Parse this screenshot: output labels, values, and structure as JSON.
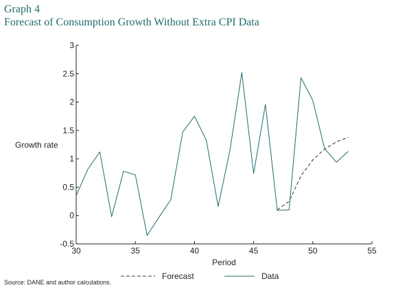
{
  "header": {
    "graph_number": "Graph 4",
    "title": "Forecast of Consumption Growth Without Extra CPI Data"
  },
  "source": "Source: DANE and author calculations.",
  "chart_data": {
    "type": "line",
    "xlabel": "Period",
    "ylabel": "Growth rate",
    "xlim": [
      30,
      55
    ],
    "ylim": [
      -0.5,
      3
    ],
    "xticks": [
      30,
      35,
      40,
      45,
      50,
      55
    ],
    "yticks": [
      -0.5,
      0,
      0.5,
      1,
      1.5,
      2,
      2.5,
      3
    ],
    "ytick_labels": [
      "-0.5",
      "0",
      "0.5",
      "1",
      "1.5",
      "2",
      "2.5",
      "3"
    ],
    "grid": false,
    "legend": "bottom",
    "series": [
      {
        "name": "Forecast",
        "style": "dashed",
        "color": "#333333",
        "x": [
          47,
          48,
          49,
          50,
          51,
          52,
          53
        ],
        "y": [
          0.1,
          0.25,
          0.7,
          0.98,
          1.17,
          1.3,
          1.38
        ]
      },
      {
        "name": "Data",
        "style": "solid",
        "color": "#1f6b6b",
        "x": [
          30,
          31,
          32,
          33,
          34,
          35,
          36,
          37,
          38,
          39,
          40,
          41,
          42,
          43,
          44,
          45,
          46,
          47,
          48,
          49,
          50,
          51,
          52,
          53
        ],
        "y": [
          0.35,
          0.82,
          1.12,
          -0.02,
          0.78,
          0.72,
          -0.35,
          -0.03,
          0.28,
          1.47,
          1.75,
          1.33,
          0.16,
          1.15,
          2.52,
          0.74,
          1.96,
          0.09,
          0.1,
          2.43,
          2.03,
          1.18,
          0.94,
          1.13
        ]
      }
    ]
  }
}
